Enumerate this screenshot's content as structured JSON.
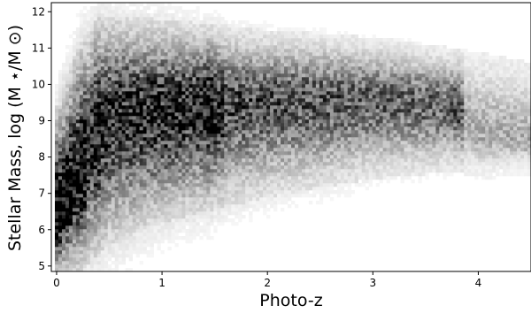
{
  "chart_data": {
    "type": "heatmap",
    "title": "",
    "xlabel": "Photo-z",
    "ylabel": "Stellar Mass, log (M ⋆/M ⊙)",
    "xlim": [
      -0.05,
      4.5
    ],
    "ylim": [
      4.85,
      12.25
    ],
    "x_ticks": [
      0,
      1,
      2,
      3,
      4
    ],
    "y_ticks": [
      5,
      6,
      7,
      8,
      9,
      10,
      11,
      12
    ],
    "colormap": "gray_r (white = low density, black = high density)",
    "colors": {
      "low": "#ffffff",
      "high": "#000000"
    },
    "grid": false,
    "density_ridge": {
      "description": "approximate log-mass of peak source density at each photo-z",
      "x": [
        0.05,
        0.1,
        0.2,
        0.3,
        0.4,
        0.6,
        0.8,
        1.0,
        1.5,
        2.0,
        2.5,
        3.0,
        3.5,
        3.8,
        4.0,
        4.5
      ],
      "y": [
        6.4,
        6.9,
        7.4,
        8.0,
        8.8,
        9.3,
        9.3,
        9.3,
        9.5,
        9.6,
        9.6,
        9.6,
        9.5,
        9.4,
        8.6,
        8.4
      ]
    },
    "upper_envelope": {
      "x": [
        0.0,
        0.2,
        0.4,
        1.0,
        2.0,
        3.0,
        3.8,
        4.5
      ],
      "y": [
        9.0,
        10.5,
        11.5,
        11.4,
        11.1,
        10.9,
        10.6,
        10.2
      ]
    },
    "lower_envelope": {
      "x": [
        0.0,
        0.2,
        0.5,
        1.0,
        2.0,
        3.0,
        3.8,
        4.0,
        4.5
      ],
      "y": [
        4.9,
        5.2,
        6.0,
        6.6,
        7.3,
        7.8,
        8.0,
        7.8,
        7.9
      ]
    },
    "features": [
      {
        "x": 0.38,
        "y_range": [
          9.0,
          11.6
        ],
        "description": "dense vertical streak"
      },
      {
        "x": 1.45,
        "y_range": [
          8.5,
          10.8
        ],
        "description": "dense vertical streak"
      },
      {
        "x": 3.8,
        "y_range": [
          8.0,
          9.0
        ],
        "description": "sharp edge in density"
      }
    ]
  }
}
